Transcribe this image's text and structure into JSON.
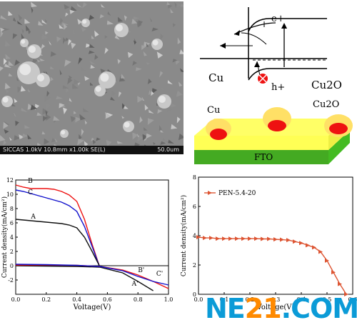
{
  "sem_image": {
    "caption_left": "SICCAS 1.0kV 10.8mm x1.00k SE(L)",
    "caption_right": "50.0um"
  },
  "band_diagram": {
    "electron_label": "e+",
    "hole_label": "h+",
    "left_label": "Cu",
    "right_label": "Cu2O"
  },
  "device_schematic": {
    "cu_label": "Cu",
    "cu2o_label": "Cu2O",
    "substrate_label": "FTO",
    "colors": {
      "film": "#ffff66",
      "substrate": "#44bb22",
      "cu_particle": "#ee1111",
      "cu2o_dome": "#ffe066"
    }
  },
  "chart_data": [
    {
      "type": "line",
      "xlabel": "Voltage(V)",
      "ylabel": "Current density(mA/cm²)",
      "xlim": [
        0.0,
        1.0
      ],
      "ylim": [
        -4,
        12
      ],
      "xticks": [
        "0.0",
        "0.2",
        "0.4",
        "0.6",
        "0.8",
        "1.0"
      ],
      "yticks": [
        "-2",
        "0",
        "2",
        "4",
        "6",
        "8",
        "10",
        "12"
      ],
      "series": [
        {
          "name": "B",
          "color": "#ee1111",
          "x": [
            0.0,
            0.05,
            0.1,
            0.15,
            0.2,
            0.25,
            0.3,
            0.35,
            0.4,
            0.45,
            0.5,
            0.55
          ],
          "y": [
            11.3,
            11.0,
            10.8,
            10.8,
            10.8,
            10.7,
            10.4,
            9.9,
            9.0,
            6.5,
            3.0,
            -0.2
          ]
        },
        {
          "name": "C",
          "color": "#1111cc",
          "x": [
            0.0,
            0.05,
            0.1,
            0.15,
            0.2,
            0.25,
            0.3,
            0.35,
            0.4,
            0.45,
            0.5,
            0.55
          ],
          "y": [
            10.6,
            10.4,
            10.1,
            9.8,
            9.5,
            9.2,
            8.9,
            8.4,
            7.6,
            5.5,
            2.7,
            -0.2
          ]
        },
        {
          "name": "A",
          "color": "#111111",
          "x": [
            0.0,
            0.1,
            0.2,
            0.3,
            0.35,
            0.4,
            0.45,
            0.5,
            0.55
          ],
          "y": [
            6.5,
            6.3,
            6.1,
            5.9,
            5.7,
            5.3,
            4.0,
            2.0,
            -0.1
          ]
        },
        {
          "name": "A'",
          "color": "#111111",
          "x": [
            0.0,
            0.2,
            0.4,
            0.55,
            0.7,
            0.8,
            0.9
          ],
          "y": [
            0.0,
            -0.05,
            -0.1,
            -0.2,
            -1.0,
            -2.2,
            -3.5
          ]
        },
        {
          "name": "B'",
          "color": "#ee1111",
          "x": [
            0.0,
            0.2,
            0.4,
            0.55,
            0.7,
            0.8,
            0.9,
            1.0
          ],
          "y": [
            0.1,
            0.1,
            0.05,
            -0.1,
            -0.6,
            -1.3,
            -2.2,
            -3.2
          ]
        },
        {
          "name": "C'",
          "color": "#1111cc",
          "x": [
            0.0,
            0.2,
            0.4,
            0.55,
            0.7,
            0.8,
            0.9,
            1.0
          ],
          "y": [
            0.2,
            0.15,
            0.05,
            -0.1,
            -0.7,
            -1.5,
            -2.2,
            -2.7
          ]
        }
      ]
    },
    {
      "type": "line",
      "xlabel": "Voltage(V)",
      "ylabel": "Current density(mA/cm²)",
      "xlim": [
        0.0,
        0.6
      ],
      "ylim": [
        0,
        8
      ],
      "xticks": [
        "0.0",
        "0.1",
        "0.2",
        "0.3",
        "0.4",
        "0.5",
        "0.6"
      ],
      "yticks": [
        "0",
        "2",
        "4",
        "6",
        "8"
      ],
      "legend_position": "top-left",
      "series": [
        {
          "name": "PEN-5.4-20",
          "color": "#dd5533",
          "marker": "triangle-right",
          "x": [
            0.0,
            0.025,
            0.05,
            0.075,
            0.1,
            0.125,
            0.15,
            0.175,
            0.2,
            0.225,
            0.25,
            0.275,
            0.3,
            0.325,
            0.35,
            0.375,
            0.4,
            0.425,
            0.45,
            0.475,
            0.5,
            0.525,
            0.55,
            0.575
          ],
          "y": [
            3.9,
            3.85,
            3.85,
            3.8,
            3.8,
            3.8,
            3.8,
            3.8,
            3.8,
            3.8,
            3.78,
            3.78,
            3.75,
            3.73,
            3.7,
            3.6,
            3.5,
            3.35,
            3.2,
            2.9,
            2.3,
            1.5,
            0.7,
            0.0
          ]
        }
      ]
    }
  ],
  "watermark": {
    "part1": "NE",
    "part2": "21",
    "part3": ".COM"
  }
}
